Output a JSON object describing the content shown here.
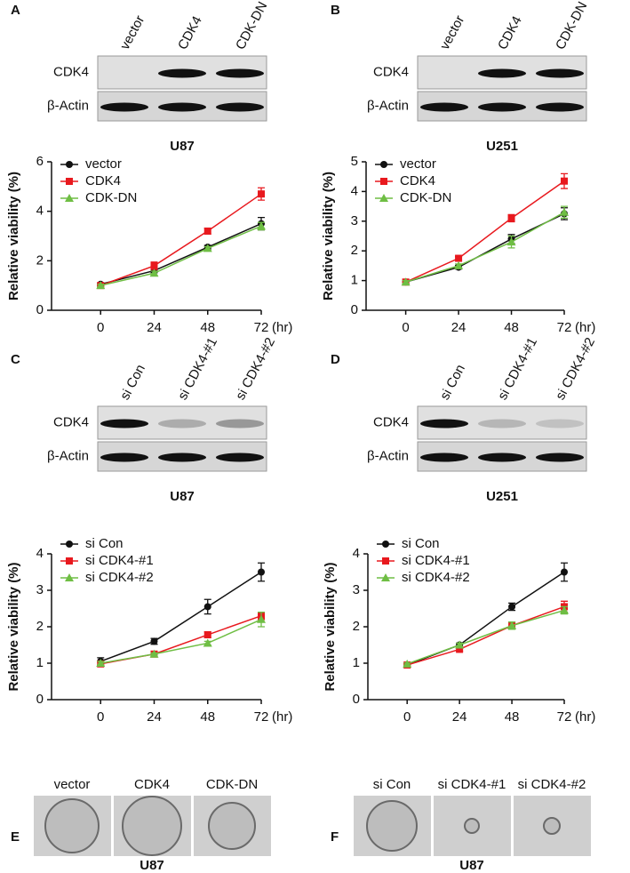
{
  "panels": [
    {
      "letter": "A",
      "lanes": [
        "vector",
        "CDK4",
        "CDK-DN"
      ],
      "rows": [
        "CDK4",
        "β-Actin"
      ],
      "cell_line": "U87"
    },
    {
      "letter": "B",
      "lanes": [
        "vector",
        "CDK4",
        "CDK-DN"
      ],
      "rows": [
        "CDK4",
        "β-Actin"
      ],
      "cell_line": "U251"
    },
    {
      "letter": "C",
      "lanes": [
        "si Con",
        "si CDK4-#1",
        "si CDK4-#2"
      ],
      "rows": [
        "CDK4",
        "β-Actin"
      ],
      "cell_line": "U87"
    },
    {
      "letter": "D",
      "lanes": [
        "si Con",
        "si CDK4-#1",
        "si CDK4-#2"
      ],
      "rows": [
        "CDK4",
        "β-Actin"
      ],
      "cell_line": "U251"
    }
  ],
  "chart_data": [
    {
      "type": "line",
      "ylabel": "Relative viability (%)",
      "xlabel": "(hr)",
      "x": [
        0,
        24,
        48,
        72
      ],
      "xlim": [
        -22,
        72
      ],
      "xticks": [
        0,
        24,
        48,
        72
      ],
      "ylim": [
        0,
        6
      ],
      "yticks": [
        0,
        2,
        4,
        6
      ],
      "series": [
        {
          "name": "vector",
          "color": "#111111",
          "marker": "circle",
          "values": [
            1.05,
            1.6,
            2.55,
            3.5
          ],
          "errors": [
            0.05,
            0.08,
            0.07,
            0.25
          ]
        },
        {
          "name": "CDK4",
          "color": "#e8191e",
          "marker": "square",
          "values": [
            1.0,
            1.8,
            3.2,
            4.7
          ],
          "errors": [
            0.05,
            0.15,
            0.12,
            0.25
          ]
        },
        {
          "name": "CDK-DN",
          "color": "#6fbe44",
          "marker": "triangle",
          "values": [
            1.0,
            1.5,
            2.5,
            3.4
          ],
          "errors": [
            0.05,
            0.08,
            0.07,
            0.15
          ]
        }
      ]
    },
    {
      "type": "line",
      "ylabel": "Relative viability (%)",
      "xlabel": "(hr)",
      "x": [
        0,
        24,
        48,
        72
      ],
      "xlim": [
        -18,
        72
      ],
      "xticks": [
        0,
        24,
        48,
        72
      ],
      "ylim": [
        0,
        5
      ],
      "yticks": [
        0,
        1,
        2,
        3,
        4,
        5
      ],
      "series": [
        {
          "name": "vector",
          "color": "#111111",
          "marker": "circle",
          "values": [
            0.95,
            1.45,
            2.4,
            3.25
          ],
          "errors": [
            0.05,
            0.06,
            0.15,
            0.2
          ]
        },
        {
          "name": "CDK4",
          "color": "#e8191e",
          "marker": "square",
          "values": [
            0.95,
            1.75,
            3.1,
            4.35
          ],
          "errors": [
            0.05,
            0.06,
            0.12,
            0.25
          ]
        },
        {
          "name": "CDK-DN",
          "color": "#6fbe44",
          "marker": "triangle",
          "values": [
            0.95,
            1.5,
            2.3,
            3.3
          ],
          "errors": [
            0.05,
            0.06,
            0.2,
            0.2
          ]
        }
      ]
    },
    {
      "type": "line",
      "ylabel": "Relative viability (%)",
      "xlabel": "(hr)",
      "x": [
        0,
        24,
        48,
        72
      ],
      "xlim": [
        -22,
        72
      ],
      "xticks": [
        0,
        24,
        48,
        72
      ],
      "ylim": [
        0,
        4
      ],
      "yticks": [
        0,
        1,
        2,
        3,
        4
      ],
      "series": [
        {
          "name": "si Con",
          "color": "#111111",
          "marker": "circle",
          "values": [
            1.05,
            1.6,
            2.55,
            3.5
          ],
          "errors": [
            0.1,
            0.08,
            0.2,
            0.25
          ]
        },
        {
          "name": "si CDK4-#1",
          "color": "#e8191e",
          "marker": "square",
          "values": [
            0.98,
            1.25,
            1.78,
            2.3
          ],
          "errors": [
            0.05,
            0.03,
            0.08,
            0.1
          ]
        },
        {
          "name": "si CDK4-#2",
          "color": "#6fbe44",
          "marker": "triangle",
          "values": [
            1.0,
            1.25,
            1.55,
            2.2
          ],
          "errors": [
            0.05,
            0.03,
            0.05,
            0.2
          ]
        }
      ]
    },
    {
      "type": "line",
      "ylabel": "Relative viability (%)",
      "xlabel": "(hr)",
      "x": [
        0,
        24,
        48,
        72
      ],
      "xlim": [
        -18,
        72
      ],
      "xticks": [
        0,
        24,
        48,
        72
      ],
      "ylim": [
        0,
        4
      ],
      "yticks": [
        0,
        1,
        2,
        3,
        4
      ],
      "series": [
        {
          "name": "si Con",
          "color": "#111111",
          "marker": "circle",
          "values": [
            0.95,
            1.5,
            2.55,
            3.5
          ],
          "errors": [
            0.05,
            0.05,
            0.1,
            0.25
          ]
        },
        {
          "name": "si CDK4-#1",
          "color": "#e8191e",
          "marker": "square",
          "values": [
            0.95,
            1.38,
            2.03,
            2.55
          ],
          "errors": [
            0.03,
            0.05,
            0.1,
            0.15
          ]
        },
        {
          "name": "si CDK4-#2",
          "color": "#6fbe44",
          "marker": "triangle",
          "values": [
            0.98,
            1.5,
            2.03,
            2.45
          ],
          "errors": [
            0.03,
            0.05,
            0.1,
            0.1
          ]
        }
      ]
    }
  ],
  "colonies": [
    {
      "letter": "E",
      "labels": [
        "vector",
        "CDK4",
        "CDK-DN"
      ],
      "cell_line": "U87"
    },
    {
      "letter": "F",
      "labels": [
        "si Con",
        "si CDK4-#1",
        "si CDK4-#2"
      ],
      "cell_line": "U87"
    }
  ]
}
